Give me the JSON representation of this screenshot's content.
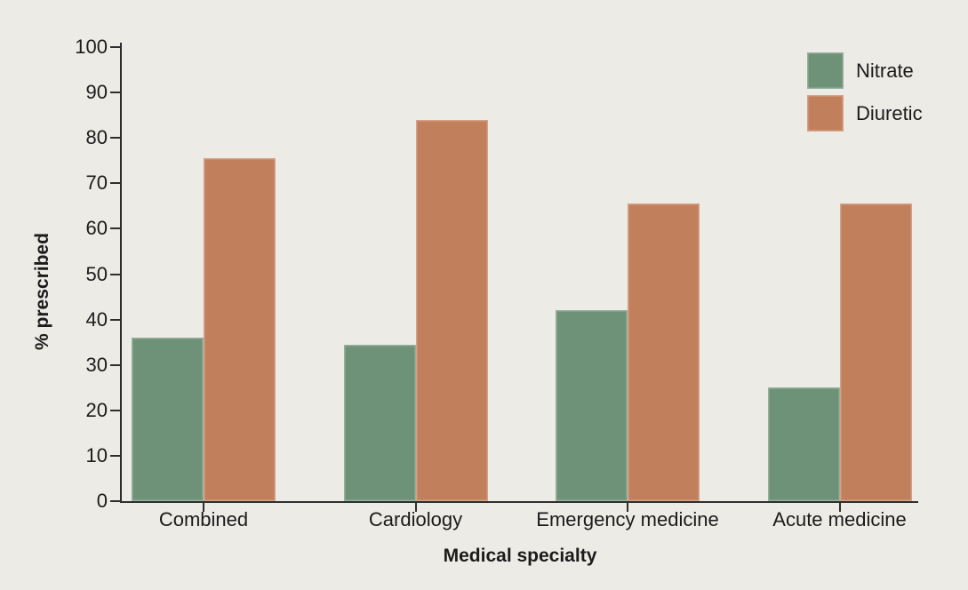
{
  "figure": {
    "background_color": "#EDEBE6",
    "text_color": "#1B1B1B",
    "axis_color": "#2E2E2E"
  },
  "chart_data": {
    "type": "bar",
    "title": "",
    "categories": [
      "Combined",
      "Cardiology",
      "Emergency medicine",
      "Acute medicine"
    ],
    "series": [
      {
        "name": "Nitrate",
        "color": "#6E9278",
        "values": [
          36,
          34.5,
          42,
          25
        ]
      },
      {
        "name": "Diuretic",
        "color": "#C27F5C",
        "values": [
          75.5,
          84,
          65.5,
          65.5
        ]
      }
    ],
    "xlabel": "Medical specialty",
    "ylabel": "% prescribed",
    "ylim": [
      0,
      100
    ],
    "ytick_step": 10,
    "yticks": [
      0,
      10,
      20,
      30,
      40,
      50,
      60,
      70,
      80,
      90,
      100
    ],
    "grid": false,
    "legend_position": "top-right"
  }
}
